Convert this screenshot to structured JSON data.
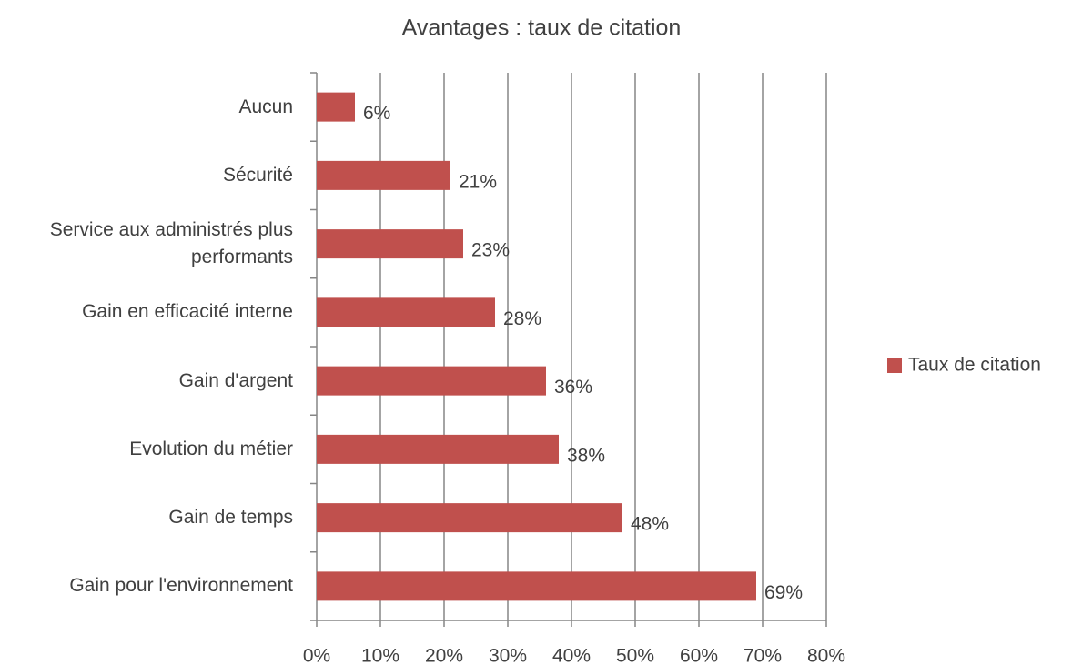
{
  "chart_data": {
    "type": "bar",
    "orientation": "horizontal",
    "title": "Avantages : taux de citation",
    "categories": [
      "Aucun",
      "Sécurité",
      "Service aux administrés plus performants",
      "Gain en efficacité interne",
      "Gain d'argent",
      "Evolution du métier",
      "Gain de temps",
      "Gain pour l'environnement"
    ],
    "series": [
      {
        "name": "Taux de citation",
        "color": "#c0504d",
        "values": [
          6,
          21,
          23,
          28,
          36,
          38,
          48,
          69
        ],
        "value_labels": [
          "6%",
          "21%",
          "23%",
          "28%",
          "36%",
          "38%",
          "48%",
          "69%"
        ]
      }
    ],
    "xlim": [
      0,
      80
    ],
    "xticks": [
      {
        "value": 0,
        "label": "0%"
      },
      {
        "value": 10,
        "label": "10%"
      },
      {
        "value": 20,
        "label": "20%"
      },
      {
        "value": 30,
        "label": "30%"
      },
      {
        "value": 40,
        "label": "40%"
      },
      {
        "value": 50,
        "label": "50%"
      },
      {
        "value": 60,
        "label": "60%"
      },
      {
        "value": 70,
        "label": "70%"
      },
      {
        "value": 80,
        "label": "80%"
      }
    ],
    "grid": true,
    "legend": "right"
  }
}
